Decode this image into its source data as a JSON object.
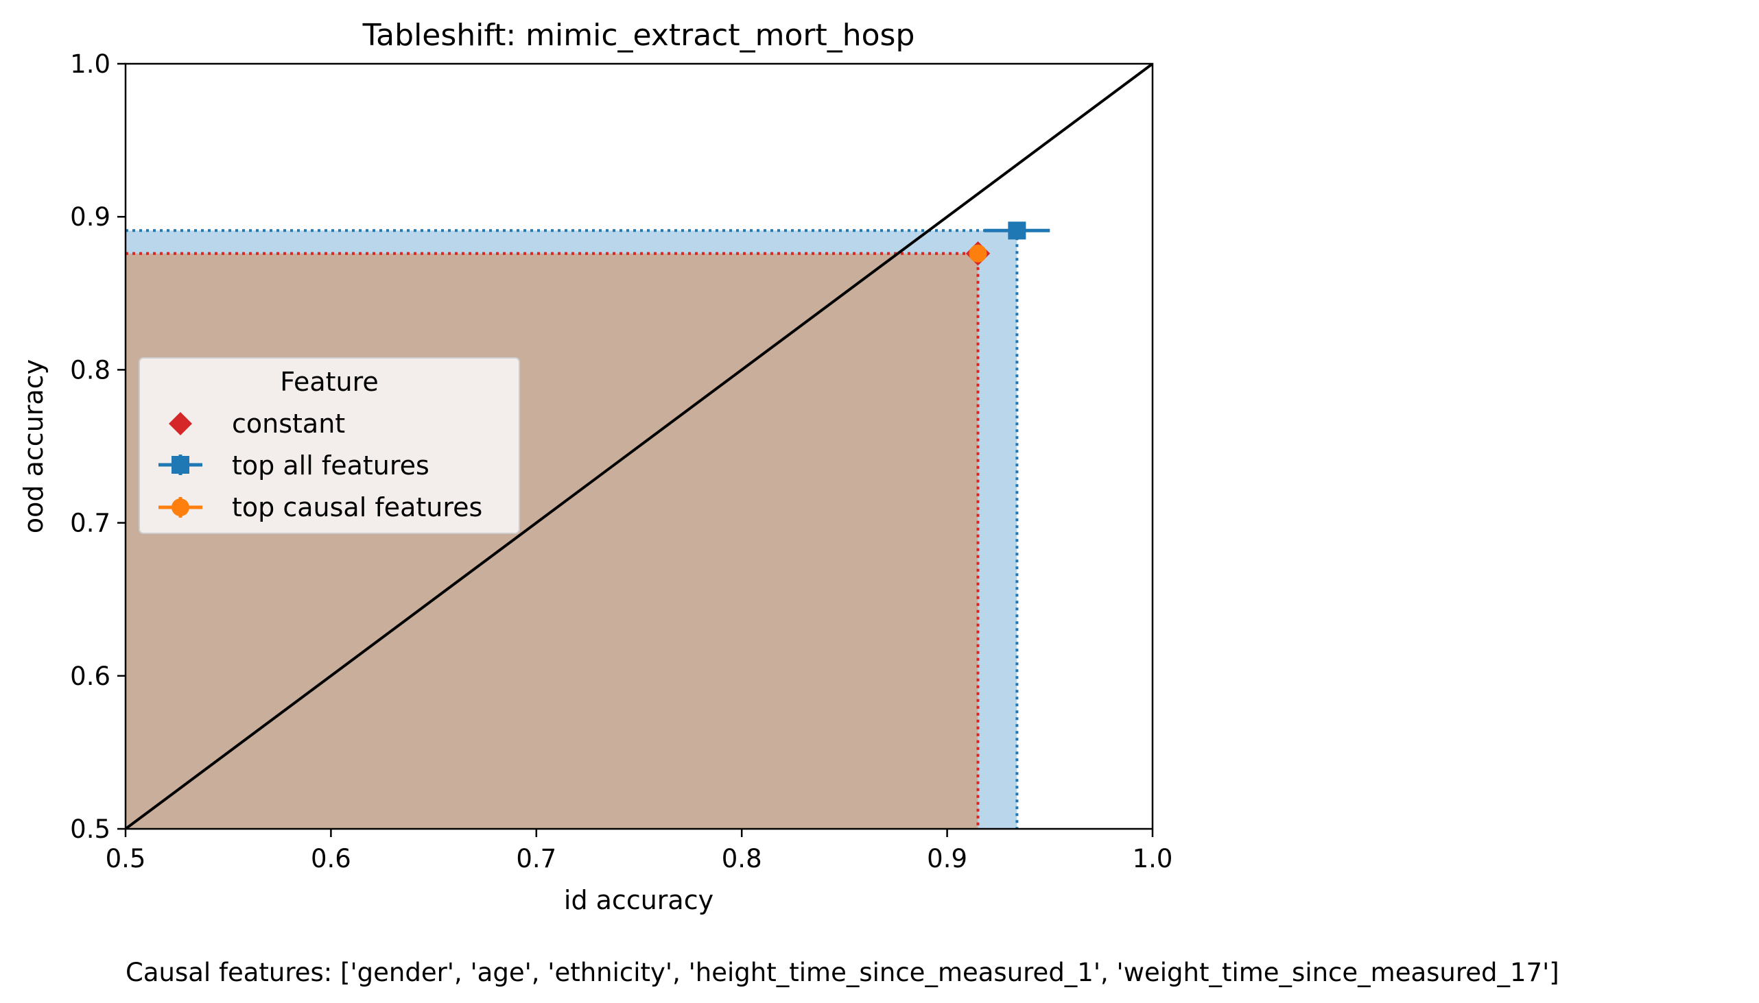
{
  "chart_data": {
    "type": "scatter",
    "title": "Tableshift: mimic_extract_mort_hosp",
    "xlabel": "id accuracy",
    "ylabel": "ood accuracy",
    "xlim": [
      0.5,
      1.0
    ],
    "ylim": [
      0.5,
      1.0
    ],
    "xticks": [
      "0.5",
      "0.6",
      "0.7",
      "0.8",
      "0.9",
      "1.0"
    ],
    "yticks": [
      "0.5",
      "0.6",
      "0.7",
      "0.8",
      "0.9",
      "1.0"
    ],
    "grid": false,
    "diagonal": true,
    "legend": {
      "title": "Feature",
      "placement": "center-left",
      "entries": [
        "constant",
        "top all features",
        "top causal features"
      ]
    },
    "series": [
      {
        "name": "constant",
        "marker": "diamond",
        "color": "#d62728",
        "x": 0.915,
        "y": 0.876,
        "xerr": 0,
        "yerr": 0
      },
      {
        "name": "top all features",
        "marker": "square",
        "color": "#1f77b4",
        "x": 0.934,
        "y": 0.891,
        "xerr": 0.016,
        "yerr": 0.003
      },
      {
        "name": "top causal features",
        "marker": "circle",
        "color": "#ff7f0e",
        "x": 0.915,
        "y": 0.876,
        "xerr": 0.002,
        "yerr": 0.002
      }
    ],
    "footnote": "Causal features: ['gender', 'age', 'ethnicity', 'height_time_since_measured_1', 'weight_time_since_measured_17']"
  }
}
